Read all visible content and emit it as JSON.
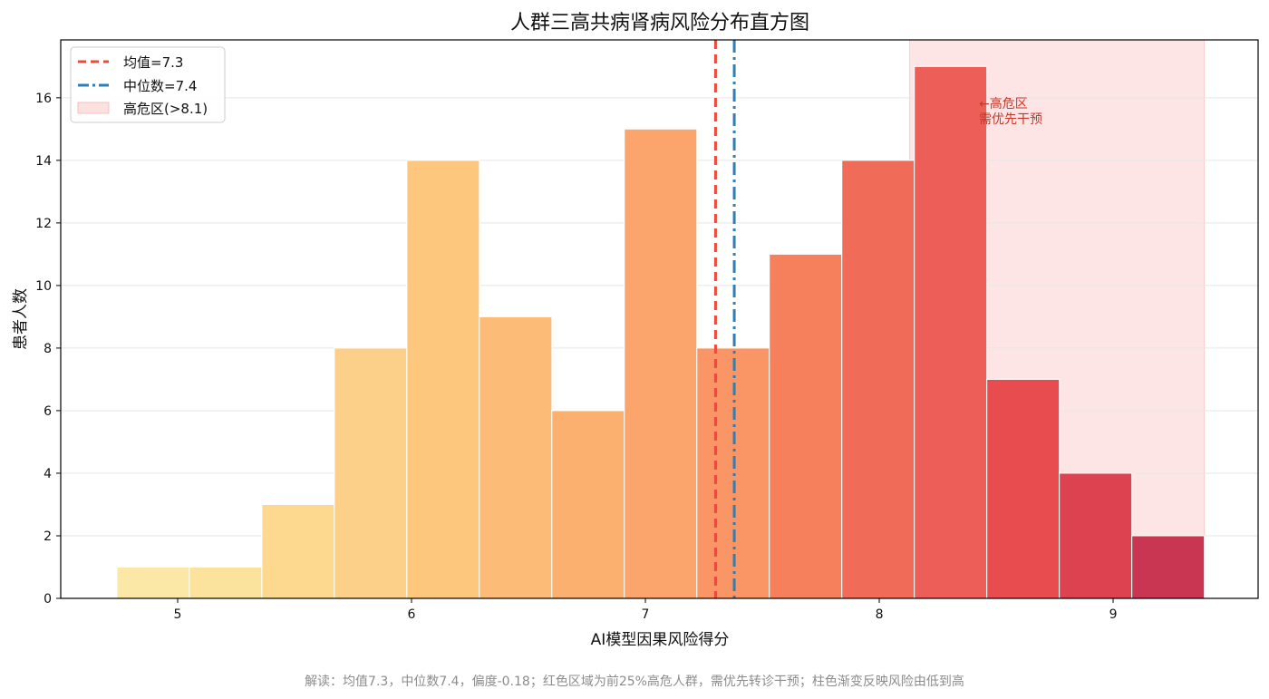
{
  "chart_data": {
    "type": "bar",
    "title": "人群三高共病肾病风险分布直方图",
    "xlabel": "AI模型因果风险得分",
    "ylabel": "患者人数",
    "xlim": [
      4.5,
      9.62
    ],
    "ylim": [
      0,
      17.85
    ],
    "xticks": [
      "5",
      "6",
      "7",
      "8",
      "9"
    ],
    "yticks": [
      "0",
      "2",
      "4",
      "6",
      "8",
      "10",
      "12",
      "14",
      "16"
    ],
    "grid": "horizontal",
    "legend_position": "top-left",
    "bins": [
      {
        "x0": 4.74,
        "x1": 5.05,
        "count": 1
      },
      {
        "x0": 5.05,
        "x1": 5.36,
        "count": 1
      },
      {
        "x0": 5.36,
        "x1": 5.67,
        "count": 3
      },
      {
        "x0": 5.67,
        "x1": 5.98,
        "count": 8
      },
      {
        "x0": 5.98,
        "x1": 6.29,
        "count": 14
      },
      {
        "x0": 6.29,
        "x1": 6.6,
        "count": 9
      },
      {
        "x0": 6.6,
        "x1": 6.91,
        "count": 6
      },
      {
        "x0": 6.91,
        "x1": 7.22,
        "count": 15
      },
      {
        "x0": 7.22,
        "x1": 7.53,
        "count": 8
      },
      {
        "x0": 7.53,
        "x1": 7.84,
        "count": 11
      },
      {
        "x0": 7.84,
        "x1": 8.15,
        "count": 14
      },
      {
        "x0": 8.15,
        "x1": 8.46,
        "count": 17
      },
      {
        "x0": 8.46,
        "x1": 8.77,
        "count": 7
      },
      {
        "x0": 8.77,
        "x1": 9.08,
        "count": 4
      },
      {
        "x0": 9.08,
        "x1": 9.39,
        "count": 2
      }
    ],
    "bar_colors": [
      "#fbe8a6",
      "#fbe29d",
      "#fcd98f",
      "#fcd088",
      "#fdc77e",
      "#fcbb77",
      "#fbb070",
      "#fba46b",
      "#fa9665",
      "#f67f5c",
      "#f06c59",
      "#ec5e57",
      "#e84c4e",
      "#dc424f",
      "#c93651"
    ],
    "mean": {
      "value": 7.3,
      "label": "均值=7.3",
      "color": "#e74c3c"
    },
    "median": {
      "value": 7.38,
      "label": "中位数=7.4",
      "color": "#2e7fb8"
    },
    "high_risk_zone": {
      "from": 8.13,
      "to": 9.39,
      "label": "高危区(>8.1)",
      "color": "#fde0e0"
    },
    "annotation": {
      "x": 8.46,
      "y": 16.0,
      "line1": "←高危区",
      "line2": "需优先干预",
      "color": "#c0392b"
    }
  },
  "caption": "解读：均值7.3，中位数7.4，偏度-0.18；红色区域为前25%高危人群，需优先转诊干预；柱色渐变反映风险由低到高"
}
